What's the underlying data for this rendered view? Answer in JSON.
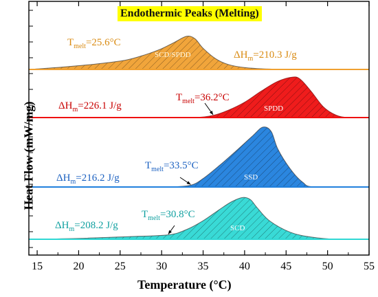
{
  "title": "Endothermic Peaks (Melting)",
  "title_bg": "#ffff00",
  "chart_data": {
    "type": "area",
    "title": "Endothermic Peaks (Melting)",
    "xlabel": "Temperature (°C)",
    "ylabel": "Heat Flow (mW/mg)",
    "xlim": [
      14,
      55
    ],
    "x_ticks": [
      "15",
      "20",
      "25",
      "30",
      "35",
      "40",
      "45",
      "50",
      "55"
    ],
    "y_tick_labels": false,
    "series": [
      {
        "name": "SCD/SPDD",
        "color": "#f0a030",
        "x": [
          14,
          18,
          22,
          25.6,
          28,
          30,
          31.5,
          33,
          34,
          35,
          36.5,
          38,
          40,
          43,
          47,
          55
        ],
        "y": [
          0,
          0.06,
          0.14,
          0.24,
          0.38,
          0.54,
          0.7,
          0.86,
          0.8,
          0.55,
          0.28,
          0.13,
          0.05,
          0.01,
          0,
          0
        ],
        "t_melt": "25.6°C",
        "dh_m": "210.3 J/g"
      },
      {
        "name": "SPDD",
        "color": "#ee1010",
        "x": [
          14,
          30,
          34,
          36.2,
          38,
          40,
          42,
          44,
          45.8,
          46.7,
          48,
          49.5,
          51,
          52.5,
          55
        ],
        "y": [
          0,
          0,
          0,
          0.05,
          0.17,
          0.36,
          0.62,
          0.85,
          0.95,
          0.9,
          0.62,
          0.25,
          0.06,
          0,
          0
        ],
        "t_melt": "36.2°C",
        "dh_m": "226.1 J/g"
      },
      {
        "name": "SSD",
        "color": "#2080dd",
        "x": [
          14,
          28,
          31,
          33.5,
          35,
          37,
          39,
          41,
          42.2,
          43.2,
          44,
          45.5,
          47,
          48.5,
          55
        ],
        "y": [
          0,
          0,
          0,
          0.03,
          0.14,
          0.36,
          0.6,
          0.85,
          0.99,
          0.92,
          0.63,
          0.3,
          0.08,
          0,
          0
        ],
        "t_melt": "33.5°C",
        "dh_m": "216.2 J/g"
      },
      {
        "name": "SCD",
        "color": "#2ed8d4",
        "x": [
          14,
          20,
          26,
          30.8,
          33,
          35,
          37,
          38.5,
          39.8,
          40.7,
          41.5,
          43,
          45.5,
          48,
          51,
          55
        ],
        "y": [
          0,
          0.02,
          0.06,
          0.1,
          0.22,
          0.42,
          0.68,
          0.86,
          0.95,
          0.9,
          0.72,
          0.42,
          0.16,
          0.05,
          0,
          0
        ],
        "t_melt": "30.8°C",
        "dh_m": "208.2 J/g"
      }
    ]
  },
  "annotations": {
    "a_tmelt": "T",
    "a_tmelt_sub": "melt",
    "a_tmelt_val": "=25.6°C",
    "a_dh": "ΔH",
    "a_dh_sub": "m",
    "a_dh_val": "=210.3 J/g",
    "b_tmelt": "T",
    "b_tmelt_sub": "melt",
    "b_tmelt_val": "=36.2°C",
    "b_dh": "ΔH",
    "b_dh_sub": "m",
    "b_dh_val": "=226.1 J/g",
    "c_tmelt": "T",
    "c_tmelt_sub": "melt",
    "c_tmelt_val": "=33.5°C",
    "c_dh": "ΔH",
    "c_dh_sub": "m",
    "c_dh_val": "=216.2 J/g",
    "d_tmelt": "T",
    "d_tmelt_sub": "melt",
    "d_tmelt_val": "=30.8°C",
    "d_dh": "ΔH",
    "d_dh_sub": "m",
    "d_dh_val": "=208.2 J/g",
    "a_colors": "#d98a10",
    "b_colors": "#c80000",
    "c_colors": "#1a60c0",
    "d_colors": "#10a0a0"
  },
  "peak_labels": [
    "SCD/SPDD",
    "SPDD",
    "SSD",
    "SCD"
  ]
}
